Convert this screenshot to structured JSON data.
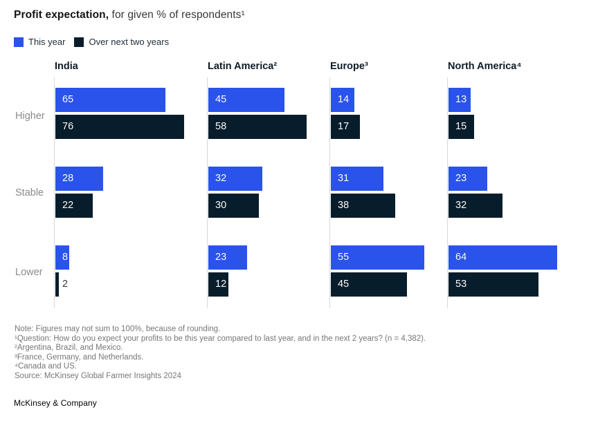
{
  "title": {
    "bold": "Profit expectation,",
    "rest": " for given % of respondents¹"
  },
  "legend": {
    "items": [
      {
        "label": "This year",
        "color": "#2a53ec"
      },
      {
        "label": "Over next two years",
        "color": "#081d2b"
      }
    ]
  },
  "chart_data": {
    "type": "bar",
    "orientation": "horizontal",
    "title": "Profit expectation, for given % of respondents",
    "value_unit": "% of respondents",
    "xlim": [
      0,
      80
    ],
    "grid": false,
    "categories": [
      "Higher",
      "Stable",
      "Lower"
    ],
    "series": [
      "This year",
      "Over next two years"
    ],
    "panels": [
      {
        "region": "India",
        "groups": [
          {
            "category": "Higher",
            "values": [
              65,
              76
            ]
          },
          {
            "category": "Stable",
            "values": [
              28,
              22
            ]
          },
          {
            "category": "Lower",
            "values": [
              8,
              2
            ]
          }
        ]
      },
      {
        "region": "Latin America²",
        "groups": [
          {
            "category": "Higher",
            "values": [
              45,
              58
            ]
          },
          {
            "category": "Stable",
            "values": [
              32,
              30
            ]
          },
          {
            "category": "Lower",
            "values": [
              23,
              12
            ]
          }
        ]
      },
      {
        "region": "Europe³",
        "groups": [
          {
            "category": "Higher",
            "values": [
              14,
              17
            ]
          },
          {
            "category": "Stable",
            "values": [
              31,
              38
            ]
          },
          {
            "category": "Lower",
            "values": [
              55,
              45
            ]
          }
        ]
      },
      {
        "region": "North America⁴",
        "groups": [
          {
            "category": "Higher",
            "values": [
              13,
              15
            ]
          },
          {
            "category": "Stable",
            "values": [
              23,
              32
            ]
          },
          {
            "category": "Lower",
            "values": [
              64,
              53
            ]
          }
        ]
      }
    ]
  },
  "footnotes": {
    "note": "Note: Figures may not sum to 100%, because of rounding.",
    "question": "¹Question: How do you expect your profits to be this year compared to last year, and in the next 2 years? (n = 4,382).",
    "fn2": "²Argentina, Brazil, and Mexico.",
    "fn3": "³France, Germany, and Netherlands.",
    "fn4": "⁴Canada and US.",
    "source": "Source: McKinsey Global Farmer Insights 2024"
  },
  "footer": {
    "brand": "McKinsey & Company"
  },
  "colors": {
    "this_year": "#2a53ec",
    "next_two_years": "#081d2b",
    "axis_line": "#d8d8d8",
    "row_label": "#8a8a8a",
    "footnote": "#767676"
  }
}
